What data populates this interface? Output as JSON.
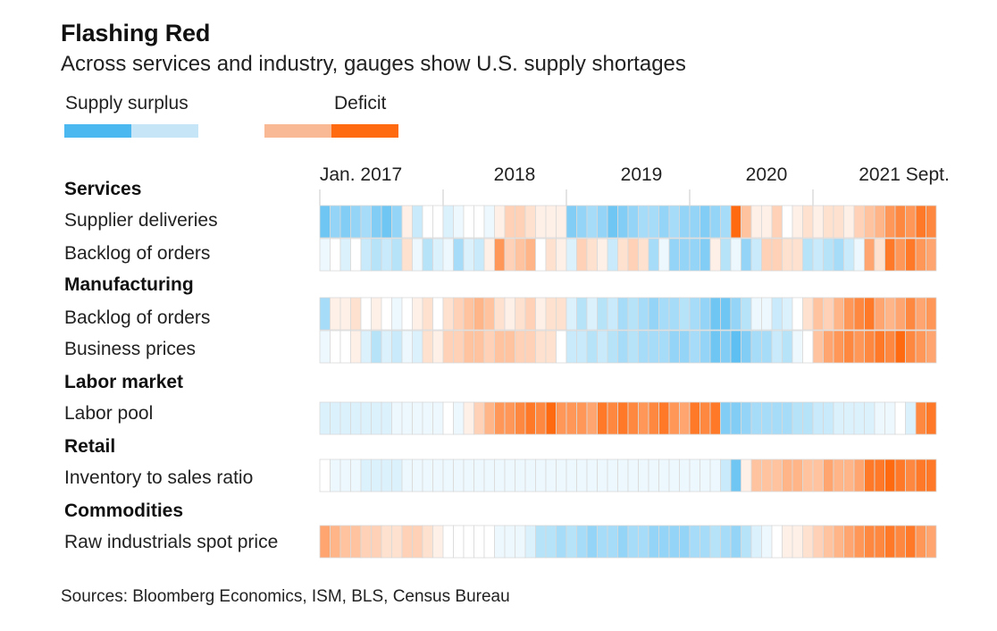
{
  "title": "Flashing Red",
  "subtitle": "Across services and industry, gauges show U.S. supply shortages",
  "chart_data": {
    "type": "heatmap",
    "legend": {
      "low_label": "Supply surplus",
      "high_label": "Deficit",
      "colors": [
        "#4cb8f0",
        "#c6e6f8",
        "#ffffff",
        "#f9b994",
        "#ff6a10"
      ]
    },
    "x_tick_labels": [
      "Jan. 2017",
      "2018",
      "2019",
      "2020",
      "2021 Sept."
    ],
    "x_start": "Jan. 2017",
    "x_end": "Sept. 2021",
    "scale": "-2 = strong surplus, 0 = neutral, 2 = strong deficit",
    "groups": [
      {
        "name": "Services",
        "rows": [
          {
            "label": "Supplier deliveries",
            "values": [
              -1.6,
              -1.2,
              -1.4,
              -1.2,
              -1.0,
              -1.4,
              -1.6,
              -1.2,
              0.2,
              -0.6,
              0,
              0,
              -0.4,
              -0.2,
              0,
              0,
              -0.2,
              0.2,
              0.6,
              0.6,
              0.4,
              0.2,
              0.2,
              0.2,
              -1.4,
              -1.2,
              -1.0,
              -1.2,
              -1.6,
              -1.4,
              -1.2,
              -1.0,
              -1.0,
              -1.2,
              -1.0,
              -1.2,
              -1.2,
              -1.4,
              -1.2,
              -1.0,
              2.0,
              0.8,
              0.2,
              0.2,
              0.6,
              0,
              0.2,
              0.4,
              0.2,
              0.4,
              0.4,
              0.2,
              0.6,
              0.8,
              1.0,
              1.4,
              1.6,
              1.4,
              1.8,
              1.6
            ]
          },
          {
            "label": "Backlog of orders",
            "values": [
              -0.2,
              0,
              -0.4,
              0,
              -0.6,
              -0.8,
              -0.6,
              -0.8,
              0.4,
              -0.2,
              -0.8,
              -0.4,
              -0.2,
              -1.0,
              -0.4,
              -0.6,
              0.2,
              1.4,
              0.6,
              0.8,
              1.0,
              0,
              0.4,
              0.2,
              -0.4,
              0.6,
              0.4,
              0.2,
              -0.6,
              0.4,
              0.6,
              0.4,
              -1.0,
              -0.2,
              -1.2,
              -1.2,
              -1.2,
              -1.4,
              0.2,
              -0.8,
              -0.2,
              -1.2,
              -0.6,
              0.6,
              0.6,
              0.4,
              0.4,
              -0.8,
              -0.6,
              -0.8,
              -1.0,
              -0.6,
              -0.2,
              1.2,
              0.4,
              1.8,
              1.4,
              1.8,
              1.4,
              1.2
            ]
          }
        ]
      },
      {
        "name": "Manufacturing",
        "rows": [
          {
            "label": "Backlog of orders",
            "values": [
              -1.0,
              0.2,
              0.2,
              0.4,
              0,
              0.2,
              0,
              -0.2,
              0,
              0.2,
              0.4,
              0,
              0.4,
              0.6,
              0.8,
              1.0,
              0.8,
              0.4,
              0.2,
              0.4,
              0.6,
              0.2,
              0.4,
              0.4,
              -0.4,
              -0.8,
              -0.4,
              -0.8,
              -0.6,
              -1.0,
              -0.8,
              -1.0,
              -1.2,
              -1.0,
              -1.0,
              -0.8,
              -1.0,
              -1.2,
              -1.6,
              -1.6,
              -1.2,
              -0.8,
              -0.2,
              -0.2,
              -0.6,
              -0.4,
              0,
              0.4,
              0.8,
              0.6,
              1.0,
              1.4,
              1.6,
              1.8,
              1.2,
              1.0,
              1.2,
              1.6,
              1.2,
              1.4
            ]
          },
          {
            "label": "Business prices",
            "values": [
              -0.2,
              0,
              0,
              0.2,
              -0.4,
              -0.8,
              -0.4,
              -0.6,
              -0.2,
              -0.4,
              0.4,
              0.2,
              0.6,
              0.6,
              0.8,
              0.8,
              0.6,
              0.8,
              0.8,
              0.6,
              0.6,
              0.4,
              0.4,
              0,
              -0.6,
              -0.6,
              -0.8,
              -0.6,
              -0.8,
              -1.0,
              -0.8,
              -1.0,
              -1.0,
              -1.0,
              -1.2,
              -1.2,
              -1.0,
              -1.2,
              -1.6,
              -1.4,
              -1.8,
              -1.4,
              -1.0,
              -1.0,
              -0.6,
              -0.8,
              -0.2,
              0,
              0.8,
              1.2,
              1.4,
              1.6,
              1.4,
              1.6,
              1.8,
              1.6,
              2.0,
              1.6,
              1.4,
              1.2
            ]
          }
        ]
      },
      {
        "name": "Labor market",
        "rows": [
          {
            "label": "Labor pool",
            "values": [
              -0.4,
              -0.4,
              -0.4,
              -0.4,
              -0.4,
              -0.4,
              -0.4,
              -0.2,
              -0.2,
              -0.2,
              -0.2,
              -0.2,
              0,
              -0.2,
              0.2,
              0.6,
              1.0,
              1.4,
              1.4,
              1.6,
              1.8,
              1.6,
              2.0,
              1.4,
              1.4,
              1.4,
              1.2,
              1.8,
              1.6,
              1.8,
              1.6,
              1.4,
              1.6,
              1.8,
              1.4,
              1.2,
              1.8,
              1.6,
              1.8,
              -1.4,
              -1.4,
              -1.2,
              -1.0,
              -1.0,
              -1.0,
              -1.0,
              -0.8,
              -0.8,
              -0.6,
              -0.6,
              -0.4,
              -0.4,
              -0.4,
              -0.4,
              -0.2,
              -0.2,
              0,
              -0.4,
              1.6,
              1.8
            ]
          }
        ]
      },
      {
        "name": "Retail",
        "rows": [
          {
            "label": "Inventory to sales ratio",
            "values": [
              0,
              -0.2,
              -0.2,
              -0.2,
              -0.4,
              -0.4,
              -0.4,
              -0.4,
              -0.2,
              -0.2,
              -0.2,
              -0.2,
              -0.2,
              -0.2,
              -0.2,
              -0.2,
              -0.2,
              -0.2,
              -0.2,
              -0.2,
              -0.2,
              -0.2,
              -0.2,
              -0.2,
              -0.2,
              -0.2,
              -0.2,
              -0.2,
              -0.2,
              -0.2,
              -0.2,
              -0.2,
              -0.2,
              -0.2,
              -0.2,
              -0.2,
              -0.2,
              -0.2,
              -0.2,
              -0.6,
              -1.6,
              0.2,
              0.8,
              0.8,
              0.8,
              1.0,
              1.0,
              0.8,
              0.8,
              1.2,
              1.0,
              1.0,
              1.2,
              1.8,
              1.8,
              2.0,
              1.8,
              1.6,
              1.8,
              1.8
            ]
          }
        ]
      },
      {
        "name": "Commodities",
        "rows": [
          {
            "label": "Raw industrials spot price",
            "values": [
              1.2,
              1.0,
              0.8,
              0.8,
              0.6,
              0.6,
              0.4,
              0.4,
              0.6,
              0.6,
              0.4,
              0.2,
              0,
              0,
              0,
              0,
              0,
              -0.2,
              -0.2,
              -0.2,
              -0.4,
              -0.8,
              -0.8,
              -1.0,
              -0.8,
              -1.0,
              -1.2,
              -1.0,
              -1.0,
              -1.2,
              -1.0,
              -1.0,
              -1.2,
              -1.2,
              -1.2,
              -1.2,
              -1.0,
              -1.0,
              -0.8,
              -1.0,
              -1.2,
              -0.8,
              -0.4,
              -0.2,
              0,
              0.2,
              0.2,
              0.4,
              0.6,
              0.8,
              1.0,
              1.2,
              1.4,
              1.6,
              1.6,
              1.8,
              1.6,
              1.8,
              1.4,
              1.2
            ]
          }
        ]
      }
    ]
  },
  "source": "Sources: Bloomberg Economics, ISM, BLS, Census Bureau"
}
